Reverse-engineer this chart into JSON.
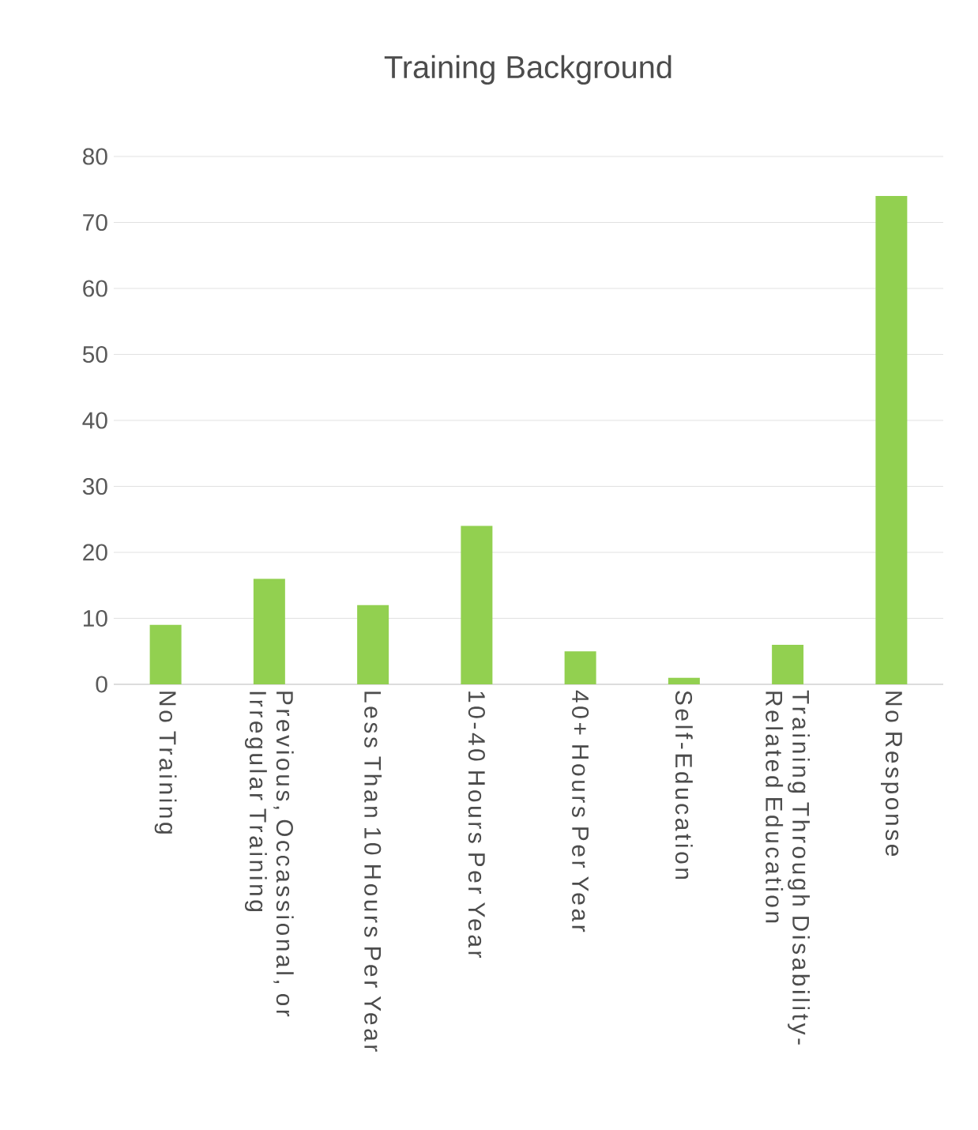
{
  "chart_data": {
    "type": "bar",
    "title": "Training Background",
    "categories": [
      "No Training",
      "Previous, Occassional, or Irregular Training",
      "Less Than 10 Hours Per Year",
      "10-40 Hours Per Year",
      "40+ Hours Per Year",
      "Self-Education",
      "Training Through Disability-Related Education",
      "No Response"
    ],
    "values": [
      9,
      16,
      12,
      24,
      5,
      1,
      6,
      74
    ],
    "color": "#92d050",
    "ylim": [
      0,
      80
    ],
    "yticks": [
      0,
      10,
      20,
      30,
      40,
      50,
      60,
      70,
      80
    ],
    "grid": "y"
  }
}
